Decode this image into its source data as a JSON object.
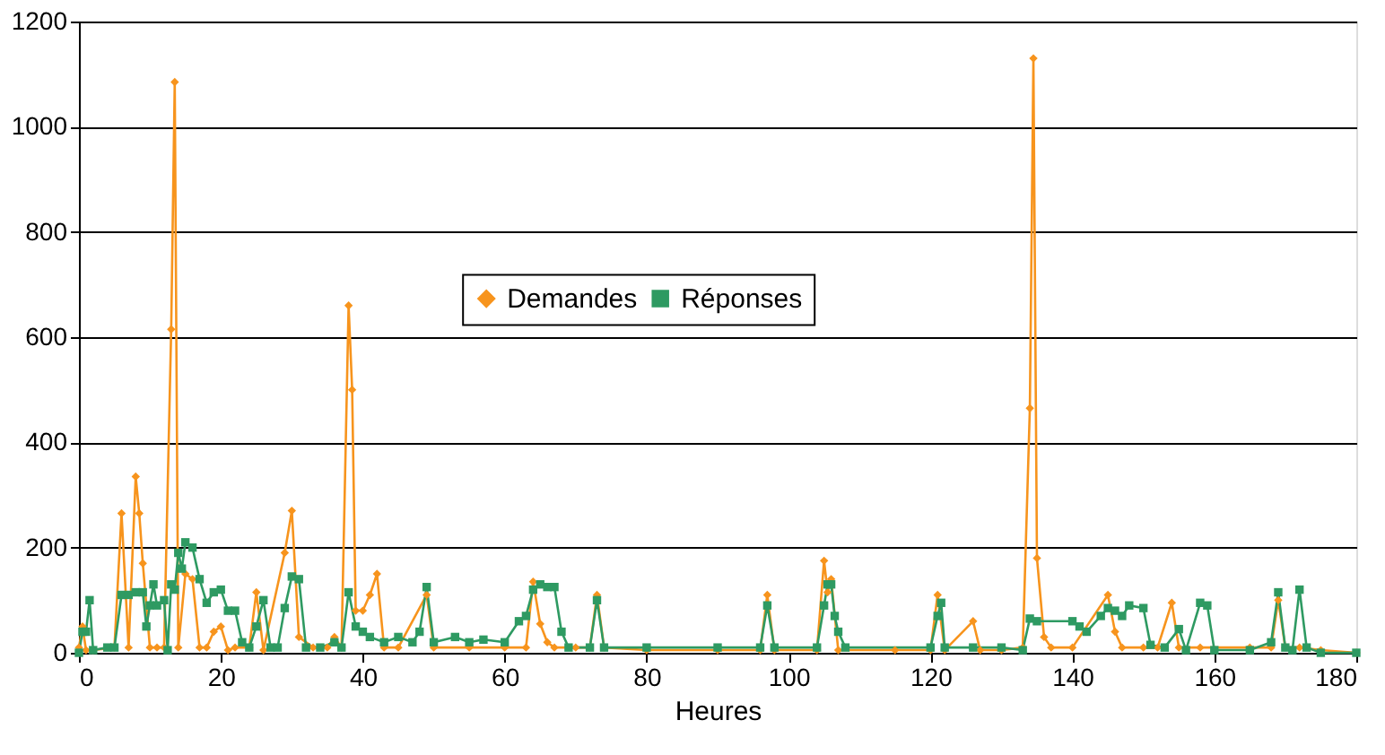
{
  "chart_data": {
    "type": "line",
    "xlabel": "Heures",
    "xlim": [
      0,
      180
    ],
    "xticks": [
      0,
      20,
      40,
      60,
      80,
      100,
      120,
      140,
      160,
      180
    ],
    "ylim": [
      0,
      1200
    ],
    "yticks": [
      0,
      200,
      400,
      600,
      800,
      1000,
      1200
    ],
    "grid": "y",
    "legend": "center",
    "series": [
      {
        "name": "Demandes",
        "color": "#f7941d",
        "marker": "diamond",
        "x": [
          0,
          0.5,
          1,
          2,
          5,
          6,
          7,
          8,
          8.5,
          9,
          10,
          11,
          12,
          13,
          13.5,
          14,
          15,
          16,
          17,
          18,
          19,
          20,
          21,
          22,
          24,
          25,
          26,
          29,
          30,
          31,
          33,
          35,
          36,
          37,
          38,
          38.5,
          39,
          40,
          41,
          42,
          43,
          45,
          49,
          50,
          55,
          60,
          63,
          64,
          65,
          66,
          67,
          70,
          72,
          73,
          74,
          80,
          90,
          96,
          97,
          98,
          104,
          105,
          105.5,
          106,
          107,
          115,
          120,
          121,
          122,
          126,
          127,
          130,
          133,
          134,
          134.5,
          135,
          136,
          137,
          140,
          145,
          146,
          147,
          150,
          152,
          154,
          155,
          158,
          165,
          168,
          169,
          170,
          172,
          175,
          180
        ],
        "values": [
          10,
          50,
          5,
          5,
          10,
          265,
          10,
          335,
          265,
          170,
          10,
          10,
          10,
          615,
          1085,
          10,
          150,
          140,
          10,
          10,
          40,
          50,
          5,
          10,
          10,
          115,
          5,
          190,
          270,
          30,
          10,
          10,
          30,
          10,
          660,
          500,
          80,
          80,
          110,
          150,
          10,
          10,
          110,
          10,
          10,
          10,
          10,
          135,
          55,
          20,
          10,
          10,
          10,
          110,
          10,
          5,
          5,
          5,
          110,
          5,
          5,
          175,
          115,
          140,
          5,
          5,
          5,
          110,
          5,
          60,
          5,
          5,
          10,
          465,
          1130,
          180,
          30,
          10,
          10,
          110,
          40,
          10,
          10,
          10,
          95,
          10,
          10,
          10,
          10,
          100,
          10,
          10,
          5,
          0
        ]
      },
      {
        "name": "Réponses",
        "color": "#2e9a62",
        "marker": "square",
        "x": [
          0,
          0.5,
          1,
          1.5,
          2,
          4,
          5,
          6,
          7,
          8,
          9,
          9.5,
          10,
          10.5,
          11,
          12,
          12.5,
          13,
          13.5,
          14,
          14.5,
          15,
          16,
          17,
          18,
          19,
          20,
          21,
          22,
          23,
          24,
          25,
          26,
          27,
          28,
          29,
          30,
          31,
          32,
          34,
          36,
          37,
          38,
          39,
          40,
          41,
          43,
          45,
          47,
          48,
          49,
          50,
          53,
          55,
          57,
          60,
          62,
          63,
          64,
          65,
          66,
          67,
          68,
          69,
          72,
          73,
          74,
          80,
          90,
          96,
          97,
          98,
          104,
          105,
          105.5,
          106,
          106.5,
          107,
          108,
          120,
          121,
          121.5,
          122,
          126,
          130,
          133,
          134,
          135,
          140,
          141,
          142,
          144,
          145,
          146,
          147,
          148,
          150,
          151,
          153,
          155,
          156,
          158,
          159,
          160,
          165,
          168,
          169,
          170,
          171,
          172,
          173,
          175,
          180
        ],
        "values": [
          0,
          40,
          40,
          100,
          5,
          10,
          10,
          110,
          110,
          115,
          115,
          50,
          90,
          130,
          90,
          100,
          5,
          130,
          120,
          190,
          160,
          210,
          200,
          140,
          95,
          115,
          120,
          80,
          80,
          20,
          10,
          50,
          100,
          10,
          10,
          85,
          145,
          140,
          10,
          10,
          20,
          10,
          115,
          50,
          40,
          30,
          20,
          30,
          20,
          40,
          125,
          20,
          30,
          20,
          25,
          20,
          60,
          70,
          120,
          130,
          125,
          125,
          40,
          10,
          10,
          100,
          10,
          10,
          10,
          10,
          90,
          10,
          10,
          90,
          130,
          130,
          70,
          40,
          10,
          10,
          70,
          95,
          10,
          10,
          10,
          5,
          65,
          60,
          60,
          50,
          40,
          70,
          85,
          80,
          70,
          90,
          85,
          15,
          10,
          45,
          5,
          95,
          90,
          5,
          5,
          20,
          115,
          10,
          5,
          120,
          10,
          0,
          0
        ]
      }
    ]
  }
}
